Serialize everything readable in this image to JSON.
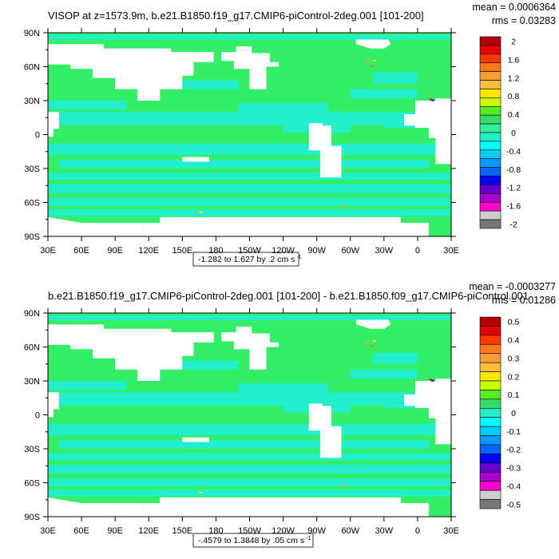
{
  "colors": {
    "ocean_green": "#33ee66",
    "ocean_cyan": "#22eecc",
    "land": "#ffffff"
  },
  "panels": [
    {
      "title": "VISOP at z=1573.9m, b.e21.B1850.f19_g17.CMIP6-piControl-2deg.001 [101-200]",
      "mean_text": "mean = 0.0006364",
      "rms_text": "rms = 0.03283",
      "range_text": "-1.282 to 1.627 by .2 cm s",
      "range_sup": "-1",
      "colorbar": {
        "labels": [
          "2",
          "1.6",
          "1.2",
          "0.8",
          "0.4",
          "0",
          "-0.4",
          "-0.8",
          "-1.2",
          "-1.6",
          "-2"
        ],
        "colors": [
          "#b40000",
          "#e60000",
          "#ff3a00",
          "#ff7a1a",
          "#ff9c33",
          "#ffba40",
          "#ffe600",
          "#c8ff00",
          "#55ee22",
          "#33dd66",
          "#33ee99",
          "#22eecc",
          "#00ffff",
          "#00ccff",
          "#0099ff",
          "#0066ff",
          "#0000ff",
          "#6600cc",
          "#aa00cc",
          "#ff00cc",
          "#cccccc",
          "#777777"
        ]
      }
    },
    {
      "title": "b.e21.B1850.f19_g17.CMIP6-piControl-2deg.001 [101-200] - b.e21.B1850.f09_g17.CMIP6-piControl.001",
      "mean_text": "mean = -0.0003277",
      "rms_text": "rms = 0.01286",
      "range_text": "-.4579 to 1.3848 by .05 cm s",
      "range_sup": "-1",
      "colorbar": {
        "labels": [
          "0.5",
          "0.4",
          "0.3",
          "0.2",
          "0.1",
          "0",
          "-0.1",
          "-0.2",
          "-0.3",
          "-0.4",
          "-0.5"
        ],
        "colors": [
          "#b40000",
          "#e60000",
          "#ff3a00",
          "#ff7a1a",
          "#ff9c33",
          "#ffba40",
          "#ffe600",
          "#c8ff00",
          "#55ee22",
          "#33dd66",
          "#22eecc",
          "#00ffff",
          "#00ccff",
          "#0099ff",
          "#0066ff",
          "#0000ff",
          "#6600cc",
          "#aa00cc",
          "#ff00cc",
          "#cccccc",
          "#777777"
        ]
      }
    }
  ],
  "axes": {
    "lat_labels": [
      "90N",
      "60N",
      "30N",
      "0",
      "30S",
      "60S",
      "90S"
    ],
    "lon_labels": [
      "30E",
      "60E",
      "90E",
      "120E",
      "150E",
      "180",
      "150W",
      "120W",
      "90W",
      "60W",
      "30W",
      "0",
      "30E"
    ]
  }
}
